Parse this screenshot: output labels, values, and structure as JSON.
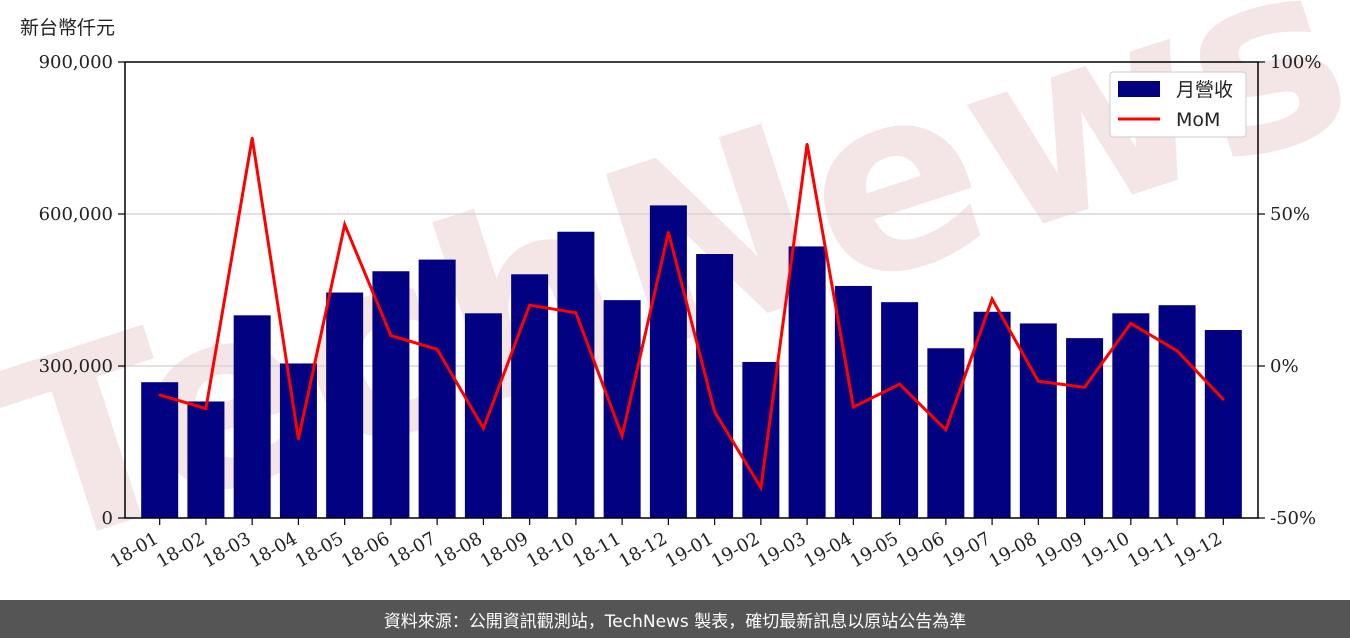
{
  "unit_label": "新台幣仟元",
  "footer_text": "資料來源：公開資訊觀測站，TechNews 製表，確切最新訊息以原站公告為準",
  "watermark": "TechNews",
  "colors": {
    "bar": "#000080",
    "line": "#ff0000",
    "grid": "#d0d0d0",
    "footer_bg": "#555555"
  },
  "chart_data": {
    "type": "bar",
    "categories": [
      "18-01",
      "18-02",
      "18-03",
      "18-04",
      "18-05",
      "18-06",
      "18-07",
      "18-08",
      "18-09",
      "18-10",
      "18-11",
      "18-12",
      "19-01",
      "19-02",
      "19-03",
      "19-04",
      "19-05",
      "19-06",
      "19-07",
      "19-08",
      "19-09",
      "19-10",
      "19-11",
      "19-12"
    ],
    "series": [
      {
        "name": "月營收",
        "type": "bar",
        "axis": "left",
        "values": [
          268000,
          230000,
          400000,
          305000,
          445000,
          487000,
          510000,
          404000,
          481000,
          565000,
          430000,
          617000,
          521000,
          308000,
          536000,
          458000,
          426000,
          335000,
          407000,
          384000,
          355000,
          404000,
          420000,
          371000
        ]
      },
      {
        "name": "MoM",
        "type": "line",
        "axis": "right",
        "values": [
          -9.5,
          -14,
          75,
          -24,
          46.5,
          10,
          5.5,
          -20.5,
          20,
          17.5,
          -23,
          44,
          -15,
          -40,
          73,
          -13.5,
          -6,
          -21,
          22,
          -5,
          -7,
          14,
          5,
          -11
        ]
      }
    ],
    "ylim_left": [
      0,
      900000
    ],
    "yticks_left": [
      "0",
      "300,000",
      "600,000",
      "900,000"
    ],
    "ylim_right": [
      -50,
      100
    ],
    "yticks_right": [
      "-50%",
      "0%",
      "50%",
      "100%"
    ],
    "grid": "horizontal",
    "legend_position": "top-right"
  }
}
